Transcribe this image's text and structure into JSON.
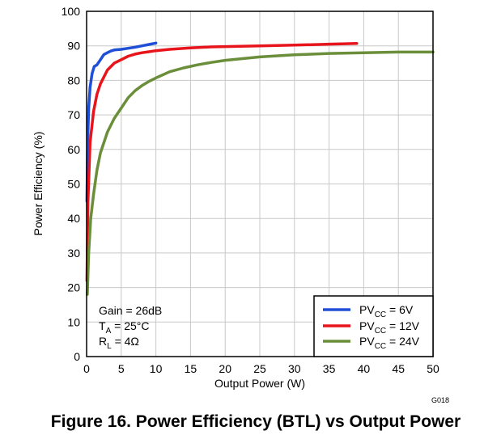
{
  "chart_data": {
    "type": "line",
    "title": "Figure 16. Power Efficiency (BTL) vs Output Power",
    "figure_code": "G018",
    "xlabel": "Output Power (W)",
    "ylabel": "Power Efficiency (%)",
    "xlim": [
      0,
      50
    ],
    "ylim": [
      0,
      100
    ],
    "xticks": [
      0,
      5,
      10,
      15,
      20,
      25,
      30,
      35,
      40,
      45,
      50
    ],
    "yticks": [
      0,
      10,
      20,
      30,
      40,
      50,
      60,
      70,
      80,
      90,
      100
    ],
    "grid": true,
    "legend_position": "bottom-right",
    "annotation": {
      "gain": "Gain = 26dB",
      "ta": {
        "main": "T",
        "sub": "A",
        "rest": " = 25°C"
      },
      "rl": {
        "main": "R",
        "sub": "L",
        "rest": " = 4Ω"
      }
    },
    "series": [
      {
        "legend": {
          "main": "PV",
          "sub": "CC",
          "rest": " = 6V"
        },
        "color": "#1f4fd6",
        "x": [
          0.05,
          0.15,
          0.3,
          0.5,
          0.8,
          1.1,
          1.5,
          2.0,
          2.5,
          3.0,
          3.5,
          4.0,
          5.0,
          6.0,
          7.0,
          8.0,
          9.0,
          10.0
        ],
        "y": [
          45,
          62,
          72,
          78,
          82,
          84,
          84.5,
          86,
          87.5,
          88,
          88.5,
          88.8,
          89,
          89.3,
          89.6,
          90,
          90.4,
          90.8
        ]
      },
      {
        "legend": {
          "main": "PV",
          "sub": "CC",
          "rest": " = 12V"
        },
        "color": "#e8141c",
        "x": [
          0.05,
          0.2,
          0.5,
          1.0,
          1.5,
          2.0,
          3.0,
          4.0,
          5.0,
          6.0,
          7.0,
          8.0,
          9.0,
          10.0,
          12.0,
          15.0,
          18.0,
          20.0,
          25.0,
          30.0,
          35.0,
          39.0
        ],
        "y": [
          22,
          45,
          62,
          71,
          76,
          79,
          83,
          85,
          86,
          87,
          87.6,
          88,
          88.3,
          88.6,
          89,
          89.4,
          89.7,
          89.8,
          90,
          90.2,
          90.5,
          90.7
        ]
      },
      {
        "legend": {
          "main": "PV",
          "sub": "CC",
          "rest": " = 24V"
        },
        "color": "#6b8e3a",
        "x": [
          0.1,
          0.3,
          0.6,
          1.0,
          1.5,
          2.0,
          3.0,
          4.0,
          5.0,
          6.0,
          7.0,
          8.0,
          9.0,
          10.0,
          12.0,
          14.0,
          16.0,
          18.0,
          20.0,
          25.0,
          30.0,
          35.0,
          40.0,
          45.0,
          50.0
        ],
        "y": [
          18,
          30,
          40,
          47,
          54,
          59,
          65,
          69,
          72,
          75,
          77,
          78.5,
          79.7,
          80.7,
          82.5,
          83.6,
          84.5,
          85.2,
          85.8,
          86.8,
          87.4,
          87.8,
          88,
          88.2,
          88.2
        ]
      }
    ]
  }
}
